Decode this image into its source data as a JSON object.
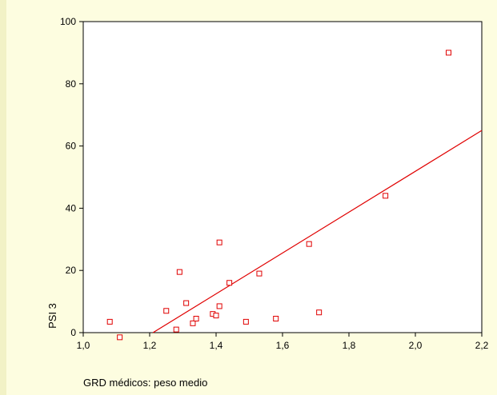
{
  "chart_data": {
    "type": "scatter",
    "title": "",
    "xlabel": "GRD médicos: peso medio",
    "ylabel": "PSI 3",
    "xlim": [
      1.0,
      2.2
    ],
    "ylim": [
      0,
      100
    ],
    "x_ticks": [
      "1,0",
      "1,2",
      "1,4",
      "1,6",
      "1,8",
      "2,0",
      "2,2"
    ],
    "y_ticks": [
      "0",
      "20",
      "40",
      "60",
      "80",
      "100"
    ],
    "grid": false,
    "legend": "none",
    "marker_color": "#e00000",
    "line_color": "#e00000",
    "points": [
      {
        "x": 1.08,
        "y": 3.5
      },
      {
        "x": 1.11,
        "y": -1.5
      },
      {
        "x": 1.25,
        "y": 7.0
      },
      {
        "x": 1.28,
        "y": 1.0
      },
      {
        "x": 1.29,
        "y": 19.5
      },
      {
        "x": 1.31,
        "y": 9.5
      },
      {
        "x": 1.33,
        "y": 3.0
      },
      {
        "x": 1.34,
        "y": 4.5
      },
      {
        "x": 1.39,
        "y": 6.0
      },
      {
        "x": 1.4,
        "y": 5.5
      },
      {
        "x": 1.41,
        "y": 29.0
      },
      {
        "x": 1.41,
        "y": 8.5
      },
      {
        "x": 1.44,
        "y": 16.0
      },
      {
        "x": 1.49,
        "y": 3.5
      },
      {
        "x": 1.53,
        "y": 19.0
      },
      {
        "x": 1.58,
        "y": 4.5
      },
      {
        "x": 1.68,
        "y": 28.5
      },
      {
        "x": 1.71,
        "y": 6.5
      },
      {
        "x": 1.91,
        "y": 44.0
      },
      {
        "x": 2.1,
        "y": 90.0
      }
    ],
    "fit_line": {
      "x": [
        1.21,
        2.2
      ],
      "y": [
        0,
        65
      ]
    }
  }
}
